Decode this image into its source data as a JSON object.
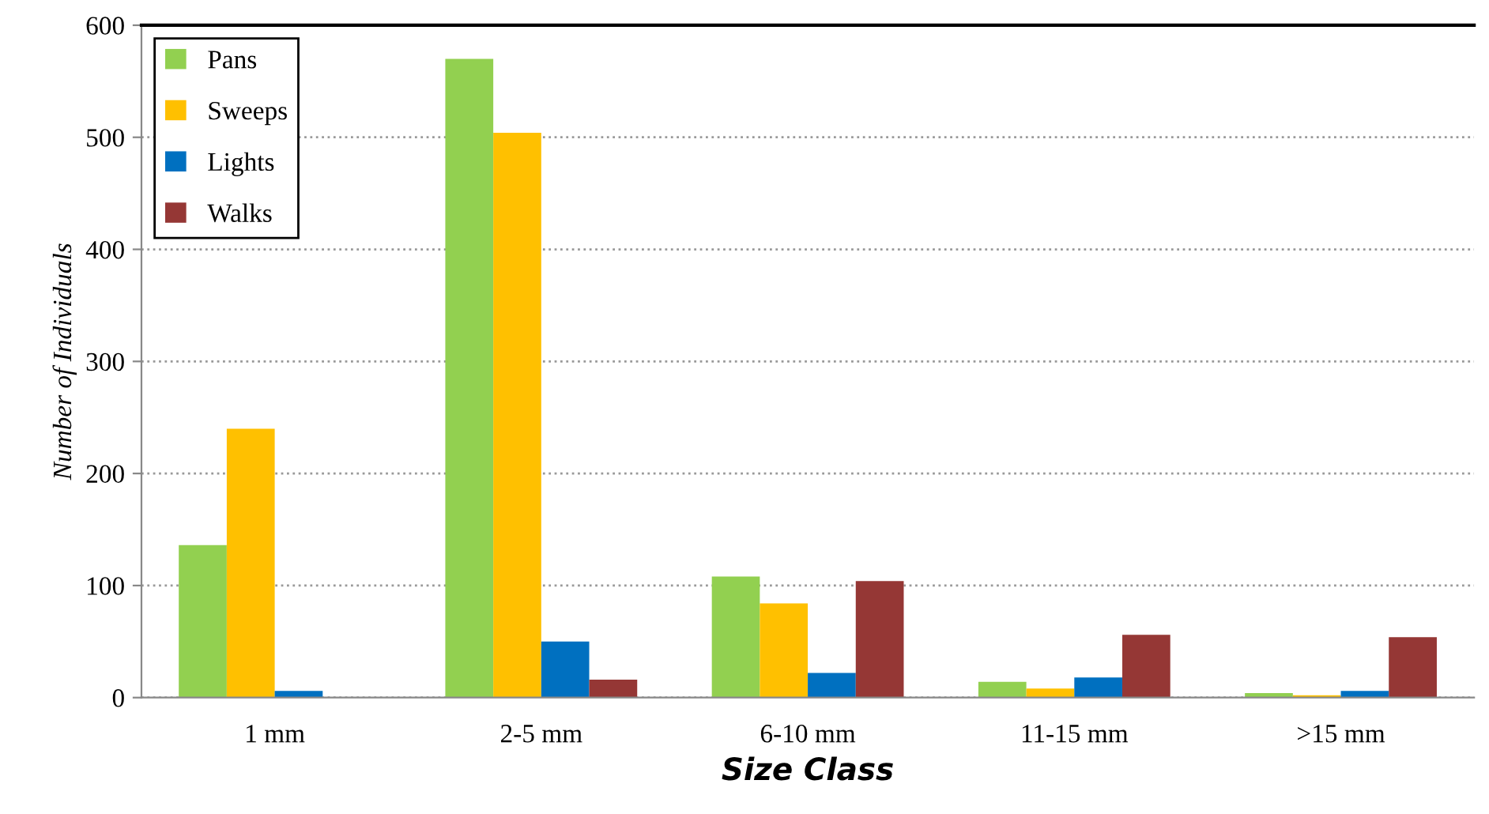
{
  "chart_data": {
    "type": "bar",
    "xlabel": "Size Class",
    "ylabel": "Number of Individuals",
    "categories": [
      "1 mm",
      "2-5 mm",
      "6-10 mm",
      "11-15 mm",
      ">15 mm"
    ],
    "series": [
      {
        "name": "Pans",
        "color": "#92d050",
        "values": [
          136,
          570,
          108,
          14,
          4
        ]
      },
      {
        "name": "Sweeps",
        "color": "#ffc000",
        "values": [
          240,
          504,
          84,
          8,
          2
        ]
      },
      {
        "name": "Lights",
        "color": "#0070c0",
        "values": [
          6,
          50,
          22,
          18,
          6
        ]
      },
      {
        "name": "Walks",
        "color": "#953735",
        "values": [
          0,
          16,
          104,
          56,
          54
        ]
      }
    ],
    "ylim": [
      0,
      600
    ],
    "yticks": [
      0,
      100,
      200,
      300,
      400,
      500,
      600
    ],
    "grid": "y",
    "legend": "top left"
  }
}
